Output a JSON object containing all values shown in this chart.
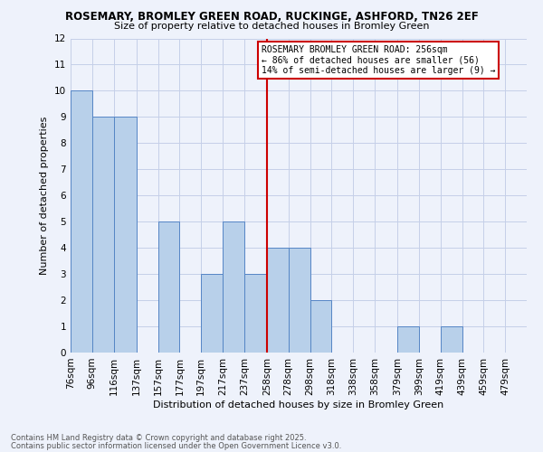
{
  "title1": "ROSEMARY, BROMLEY GREEN ROAD, RUCKINGE, ASHFORD, TN26 2EF",
  "title2": "Size of property relative to detached houses in Bromley Green",
  "xlabel": "Distribution of detached houses by size in Bromley Green",
  "ylabel": "Number of detached properties",
  "footnote1": "Contains HM Land Registry data © Crown copyright and database right 2025.",
  "footnote2": "Contains public sector information licensed under the Open Government Licence v3.0.",
  "bin_labels": [
    "76sqm",
    "96sqm",
    "116sqm",
    "137sqm",
    "157sqm",
    "177sqm",
    "197sqm",
    "217sqm",
    "237sqm",
    "258sqm",
    "278sqm",
    "298sqm",
    "318sqm",
    "338sqm",
    "358sqm",
    "379sqm",
    "399sqm",
    "419sqm",
    "439sqm",
    "459sqm",
    "479sqm"
  ],
  "bin_edges": [
    76,
    96,
    116,
    137,
    157,
    177,
    197,
    217,
    237,
    258,
    278,
    298,
    318,
    338,
    358,
    379,
    399,
    419,
    439,
    459,
    479,
    499
  ],
  "bar_values": [
    10,
    9,
    9,
    0,
    5,
    0,
    3,
    5,
    3,
    4,
    4,
    2,
    0,
    0,
    0,
    1,
    0,
    1,
    0,
    0,
    0
  ],
  "bar_color": "#b8d0ea",
  "bar_edge_color": "#5585c5",
  "reference_line_x": 258,
  "reference_line_color": "#cc0000",
  "annotation_text": "ROSEMARY BROMLEY GREEN ROAD: 256sqm\n← 86% of detached houses are smaller (56)\n14% of semi-detached houses are larger (9) →",
  "annotation_box_color": "#cc0000",
  "ylim": [
    0,
    12
  ],
  "yticks": [
    0,
    1,
    2,
    3,
    4,
    5,
    6,
    7,
    8,
    9,
    10,
    11,
    12
  ],
  "bg_color": "#eef2fb",
  "grid_color": "#c5cfe8"
}
